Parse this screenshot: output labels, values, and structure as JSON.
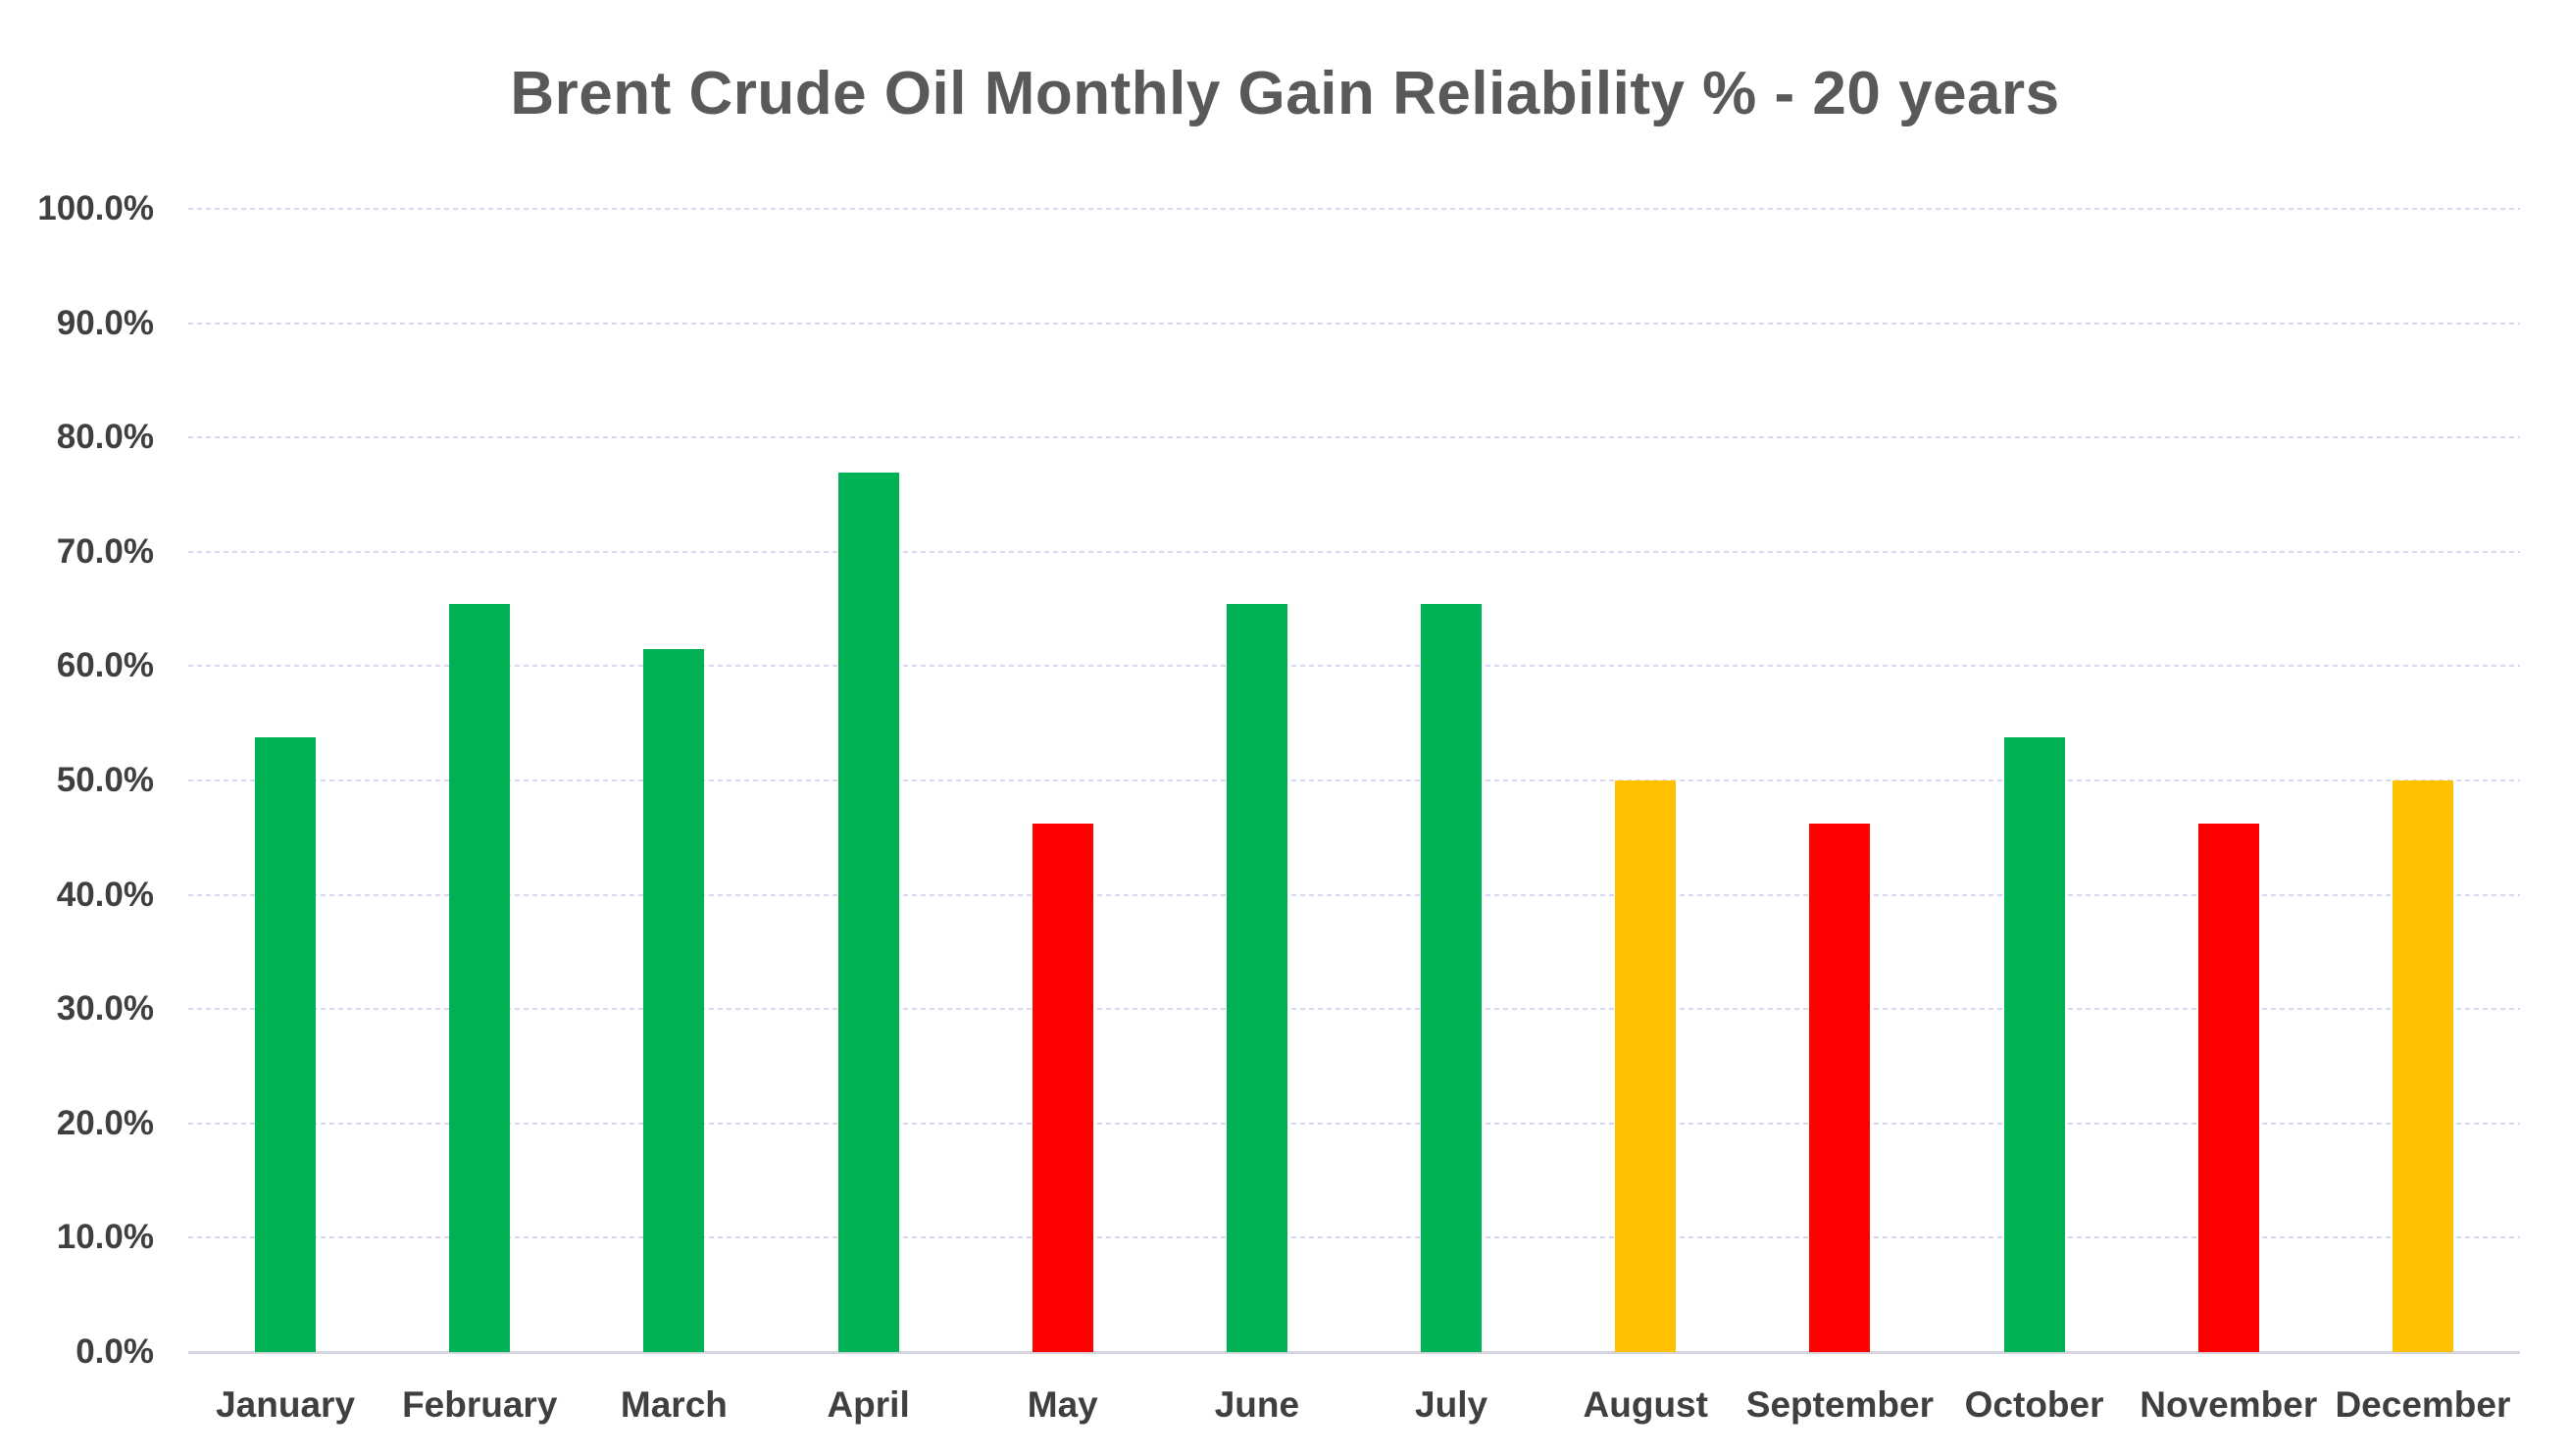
{
  "page": {
    "background": "#FFFFFF"
  },
  "chart_data": {
    "type": "bar",
    "title": "Brent Crude Oil Monthly Gain Reliability % - 20 years",
    "xlabel": "",
    "ylabel": "",
    "categories": [
      "January",
      "February",
      "March",
      "April",
      "May",
      "June",
      "July",
      "August",
      "September",
      "October",
      "November",
      "December"
    ],
    "values": [
      53.8,
      65.4,
      61.5,
      76.9,
      46.2,
      65.4,
      65.4,
      50.0,
      46.2,
      53.8,
      46.2,
      50.0
    ],
    "bar_color_names": [
      "green",
      "green",
      "green",
      "green",
      "red",
      "green",
      "green",
      "yellow",
      "red",
      "green",
      "red",
      "yellow"
    ],
    "palette": {
      "green": "#00B254",
      "red": "#FF0000",
      "yellow": "#FFC000"
    },
    "ylim": [
      0,
      100
    ],
    "ytick_step": 10,
    "ytick_labels": [
      "0.0%",
      "10.0%",
      "20.0%",
      "30.0%",
      "40.0%",
      "50.0%",
      "60.0%",
      "70.0%",
      "80.0%",
      "90.0%",
      "100.0%"
    ],
    "grid": "horizontal-dashed",
    "legend": "none"
  },
  "colors": {
    "title_text": "#595959",
    "axis_label_text": "#3F3F3F",
    "gridline": "#D7D7EF",
    "baseline": "#D4D4DF",
    "background": "#FFFFFF"
  }
}
